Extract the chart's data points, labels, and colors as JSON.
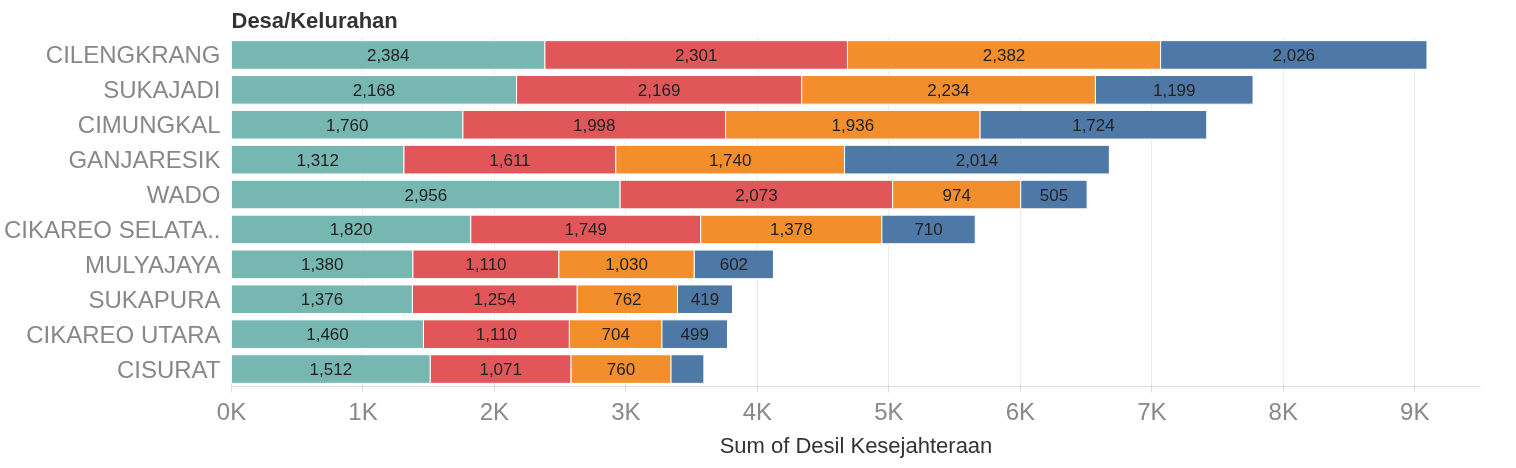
{
  "chart_data": {
    "type": "bar",
    "orientation": "horizontal",
    "stacked": true,
    "ylabel": "Desa/Kelurahan",
    "xlabel": "Sum of Desil Kesejahteraan",
    "categories": [
      "CILENGKRANG",
      "SUKAJADI",
      "CIMUNGKAL",
      "GANJARESIK",
      "WADO",
      "CIKAREO SELATA..",
      "MULYAJAYA",
      "SUKAPURA",
      "CIKAREO UTARA",
      "CISURAT"
    ],
    "series": [
      {
        "color": "#76b7b2",
        "values": [
          2384,
          2168,
          1760,
          1312,
          2956,
          1820,
          1380,
          1376,
          1460,
          1512
        ],
        "value_labels": [
          "2,384",
          "2,168",
          "1,760",
          "1,312",
          "2,956",
          "1,820",
          "1,380",
          "1,376",
          "1,460",
          "1,512"
        ]
      },
      {
        "color": "#e15759",
        "values": [
          2301,
          2169,
          1998,
          1611,
          2073,
          1749,
          1110,
          1254,
          1110,
          1071
        ],
        "value_labels": [
          "2,301",
          "2,169",
          "1,998",
          "1,611",
          "2,073",
          "1,749",
          "1,110",
          "1,254",
          "1,110",
          "1,071"
        ]
      },
      {
        "color": "#f28e2b",
        "values": [
          2382,
          2234,
          1936,
          1740,
          974,
          1378,
          1030,
          762,
          704,
          760
        ],
        "value_labels": [
          "2,382",
          "2,234",
          "1,936",
          "1,740",
          "974",
          "1,378",
          "1,030",
          "762",
          "704",
          "760"
        ]
      },
      {
        "color": "#4e79a7",
        "values": [
          2026,
          1199,
          1724,
          2014,
          505,
          710,
          602,
          419,
          499,
          250
        ],
        "value_labels": [
          "2,026",
          "1,199",
          "1,724",
          "2,014",
          "505",
          "710",
          "602",
          "419",
          "499",
          null
        ]
      }
    ],
    "xlim": [
      0,
      9500
    ],
    "xticks": [
      {
        "value": 0,
        "label": "0K"
      },
      {
        "value": 1000,
        "label": "1K"
      },
      {
        "value": 2000,
        "label": "2K"
      },
      {
        "value": 3000,
        "label": "3K"
      },
      {
        "value": 4000,
        "label": "4K"
      },
      {
        "value": 5000,
        "label": "5K"
      },
      {
        "value": 6000,
        "label": "6K"
      },
      {
        "value": 7000,
        "label": "7K"
      },
      {
        "value": 8000,
        "label": "8K"
      },
      {
        "value": 9000,
        "label": "9K"
      }
    ],
    "grid": "x"
  }
}
